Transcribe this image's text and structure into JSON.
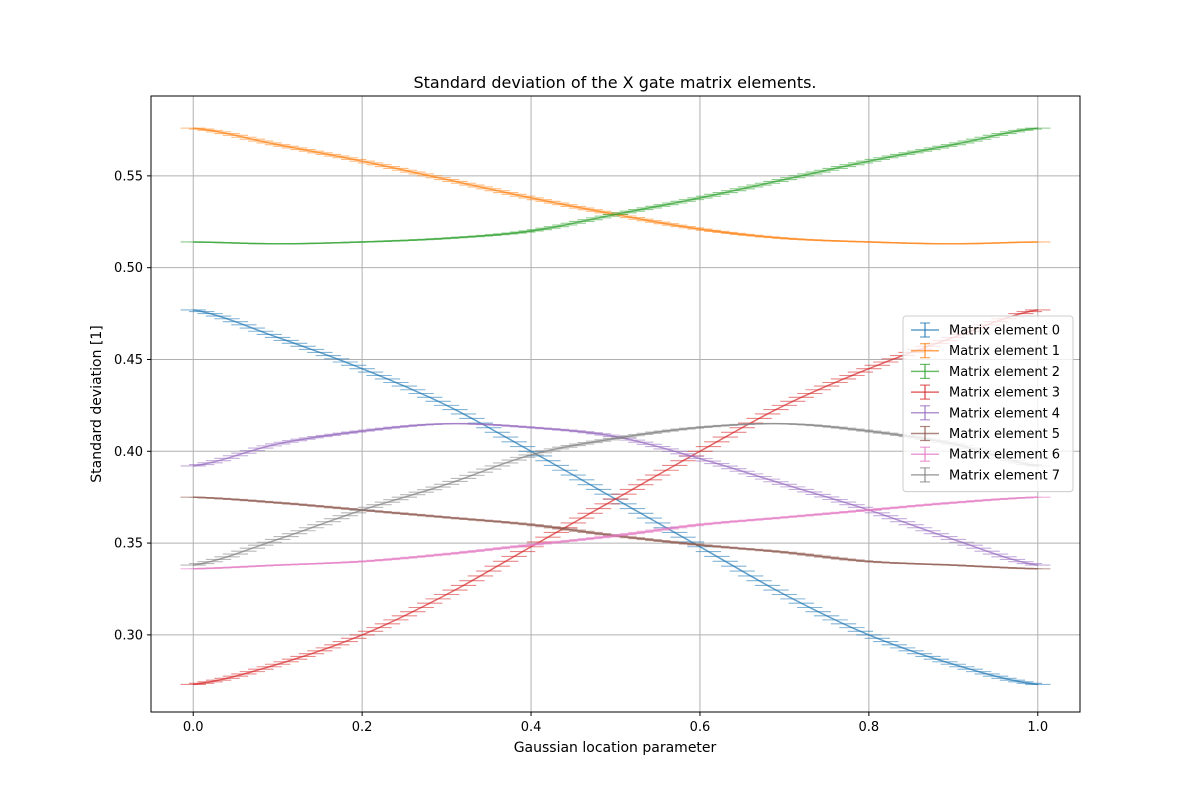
{
  "chart_data": {
    "type": "line",
    "title": "Standard deviation of the X gate matrix elements.",
    "xlabel": "Gaussian location parameter",
    "ylabel": "Standard deviation [1]",
    "xlim": [
      -0.05,
      1.05
    ],
    "ylim": [
      0.258,
      0.5935
    ],
    "xticks": [
      0.0,
      0.2,
      0.4,
      0.6,
      0.8,
      1.0
    ],
    "xtick_labels": [
      "0.0",
      "0.2",
      "0.4",
      "0.6",
      "0.8",
      "1.0"
    ],
    "yticks": [
      0.3,
      0.35,
      0.4,
      0.45,
      0.5,
      0.55
    ],
    "ytick_labels": [
      "0.30",
      "0.35",
      "0.40",
      "0.45",
      "0.50",
      "0.55"
    ],
    "grid": true,
    "error_bars": true,
    "legend_position": "center-right",
    "x": [
      0.0,
      0.1,
      0.2,
      0.3,
      0.4,
      0.5,
      0.6,
      0.7,
      0.8,
      0.9,
      1.0
    ],
    "series": [
      {
        "name": "Matrix element 0",
        "color": "#1f77b4",
        "values": [
          0.477,
          0.462,
          0.445,
          0.425,
          0.4,
          0.374,
          0.348,
          0.322,
          0.3,
          0.284,
          0.273
        ]
      },
      {
        "name": "Matrix element 1",
        "color": "#ff7f0e",
        "values": [
          0.576,
          0.567,
          0.558,
          0.548,
          0.538,
          0.529,
          0.521,
          0.516,
          0.514,
          0.513,
          0.514
        ]
      },
      {
        "name": "Matrix element 2",
        "color": "#2ca02c",
        "values": [
          0.514,
          0.513,
          0.514,
          0.516,
          0.52,
          0.529,
          0.538,
          0.548,
          0.558,
          0.567,
          0.576
        ]
      },
      {
        "name": "Matrix element 3",
        "color": "#d62728",
        "values": [
          0.273,
          0.284,
          0.3,
          0.322,
          0.348,
          0.374,
          0.4,
          0.425,
          0.445,
          0.462,
          0.477
        ]
      },
      {
        "name": "Matrix element 4",
        "color": "#9467bd",
        "values": [
          0.392,
          0.404,
          0.411,
          0.415,
          0.413,
          0.408,
          0.396,
          0.382,
          0.368,
          0.352,
          0.338
        ]
      },
      {
        "name": "Matrix element 5",
        "color": "#8c564b",
        "values": [
          0.375,
          0.372,
          0.368,
          0.364,
          0.36,
          0.354,
          0.349,
          0.345,
          0.34,
          0.338,
          0.336
        ]
      },
      {
        "name": "Matrix element 6",
        "color": "#e377c2",
        "values": [
          0.336,
          0.338,
          0.34,
          0.344,
          0.349,
          0.354,
          0.36,
          0.364,
          0.368,
          0.372,
          0.375
        ]
      },
      {
        "name": "Matrix element 7",
        "color": "#7f7f7f",
        "values": [
          0.338,
          0.352,
          0.368,
          0.382,
          0.398,
          0.407,
          0.413,
          0.415,
          0.411,
          0.404,
          0.392
        ]
      }
    ]
  }
}
